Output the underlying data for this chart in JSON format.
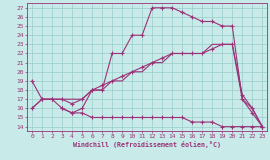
{
  "xlabel": "Windchill (Refroidissement éolien,°C)",
  "bg_color": "#c8eae8",
  "line_color": "#993377",
  "grid_color": "#99cccc",
  "xlim": [
    -0.5,
    23.5
  ],
  "ylim": [
    13.5,
    27.5
  ],
  "xticks": [
    0,
    1,
    2,
    3,
    4,
    5,
    6,
    7,
    8,
    9,
    10,
    11,
    12,
    13,
    14,
    15,
    16,
    17,
    18,
    19,
    20,
    21,
    22,
    23
  ],
  "yticks": [
    14,
    15,
    16,
    17,
    18,
    19,
    20,
    21,
    22,
    23,
    24,
    25,
    26,
    27
  ],
  "line1_x": [
    0,
    1,
    2,
    3,
    4,
    5,
    6,
    7,
    8,
    9,
    10,
    11,
    12,
    13,
    14,
    15,
    16,
    17,
    18,
    19,
    20,
    21,
    22,
    23
  ],
  "line1_y": [
    19,
    17,
    17,
    16,
    15.5,
    16,
    18,
    18,
    22,
    22,
    24,
    24,
    27,
    27,
    27,
    26.5,
    26,
    25.5,
    25.5,
    25,
    25,
    17,
    15.5,
    14
  ],
  "line2_x": [
    3,
    4,
    5,
    6,
    7,
    8,
    9,
    10,
    11,
    12,
    13,
    14,
    15,
    16,
    17,
    18,
    19,
    20,
    21,
    22,
    23
  ],
  "line2_y": [
    16,
    15.5,
    15.5,
    15,
    15,
    15,
    15,
    15,
    15,
    15,
    15,
    15,
    15,
    14.5,
    14.5,
    14.5,
    14,
    14,
    14,
    14,
    14
  ],
  "line3_x": [
    0,
    1,
    2,
    3,
    4,
    5,
    6,
    7,
    8,
    9,
    10,
    11,
    12,
    13,
    14,
    15,
    16,
    17,
    18,
    19,
    20,
    21,
    22,
    23
  ],
  "line3_y": [
    16,
    17,
    17,
    17,
    16.5,
    17,
    18,
    18.5,
    19,
    19.5,
    20,
    20.5,
    21,
    21.5,
    22,
    22,
    22,
    22,
    22.5,
    23,
    23,
    17.5,
    16,
    14
  ],
  "line4_x": [
    0,
    1,
    2,
    3,
    4,
    5,
    6,
    7,
    8,
    9,
    10,
    11,
    12,
    13,
    14,
    15,
    16,
    17,
    18,
    19,
    20,
    21,
    22,
    23
  ],
  "line4_y": [
    16,
    17,
    17,
    17,
    17,
    17,
    18,
    18,
    19,
    19,
    20,
    20,
    21,
    21,
    22,
    22,
    22,
    22,
    23,
    23,
    23,
    17,
    16,
    14
  ]
}
